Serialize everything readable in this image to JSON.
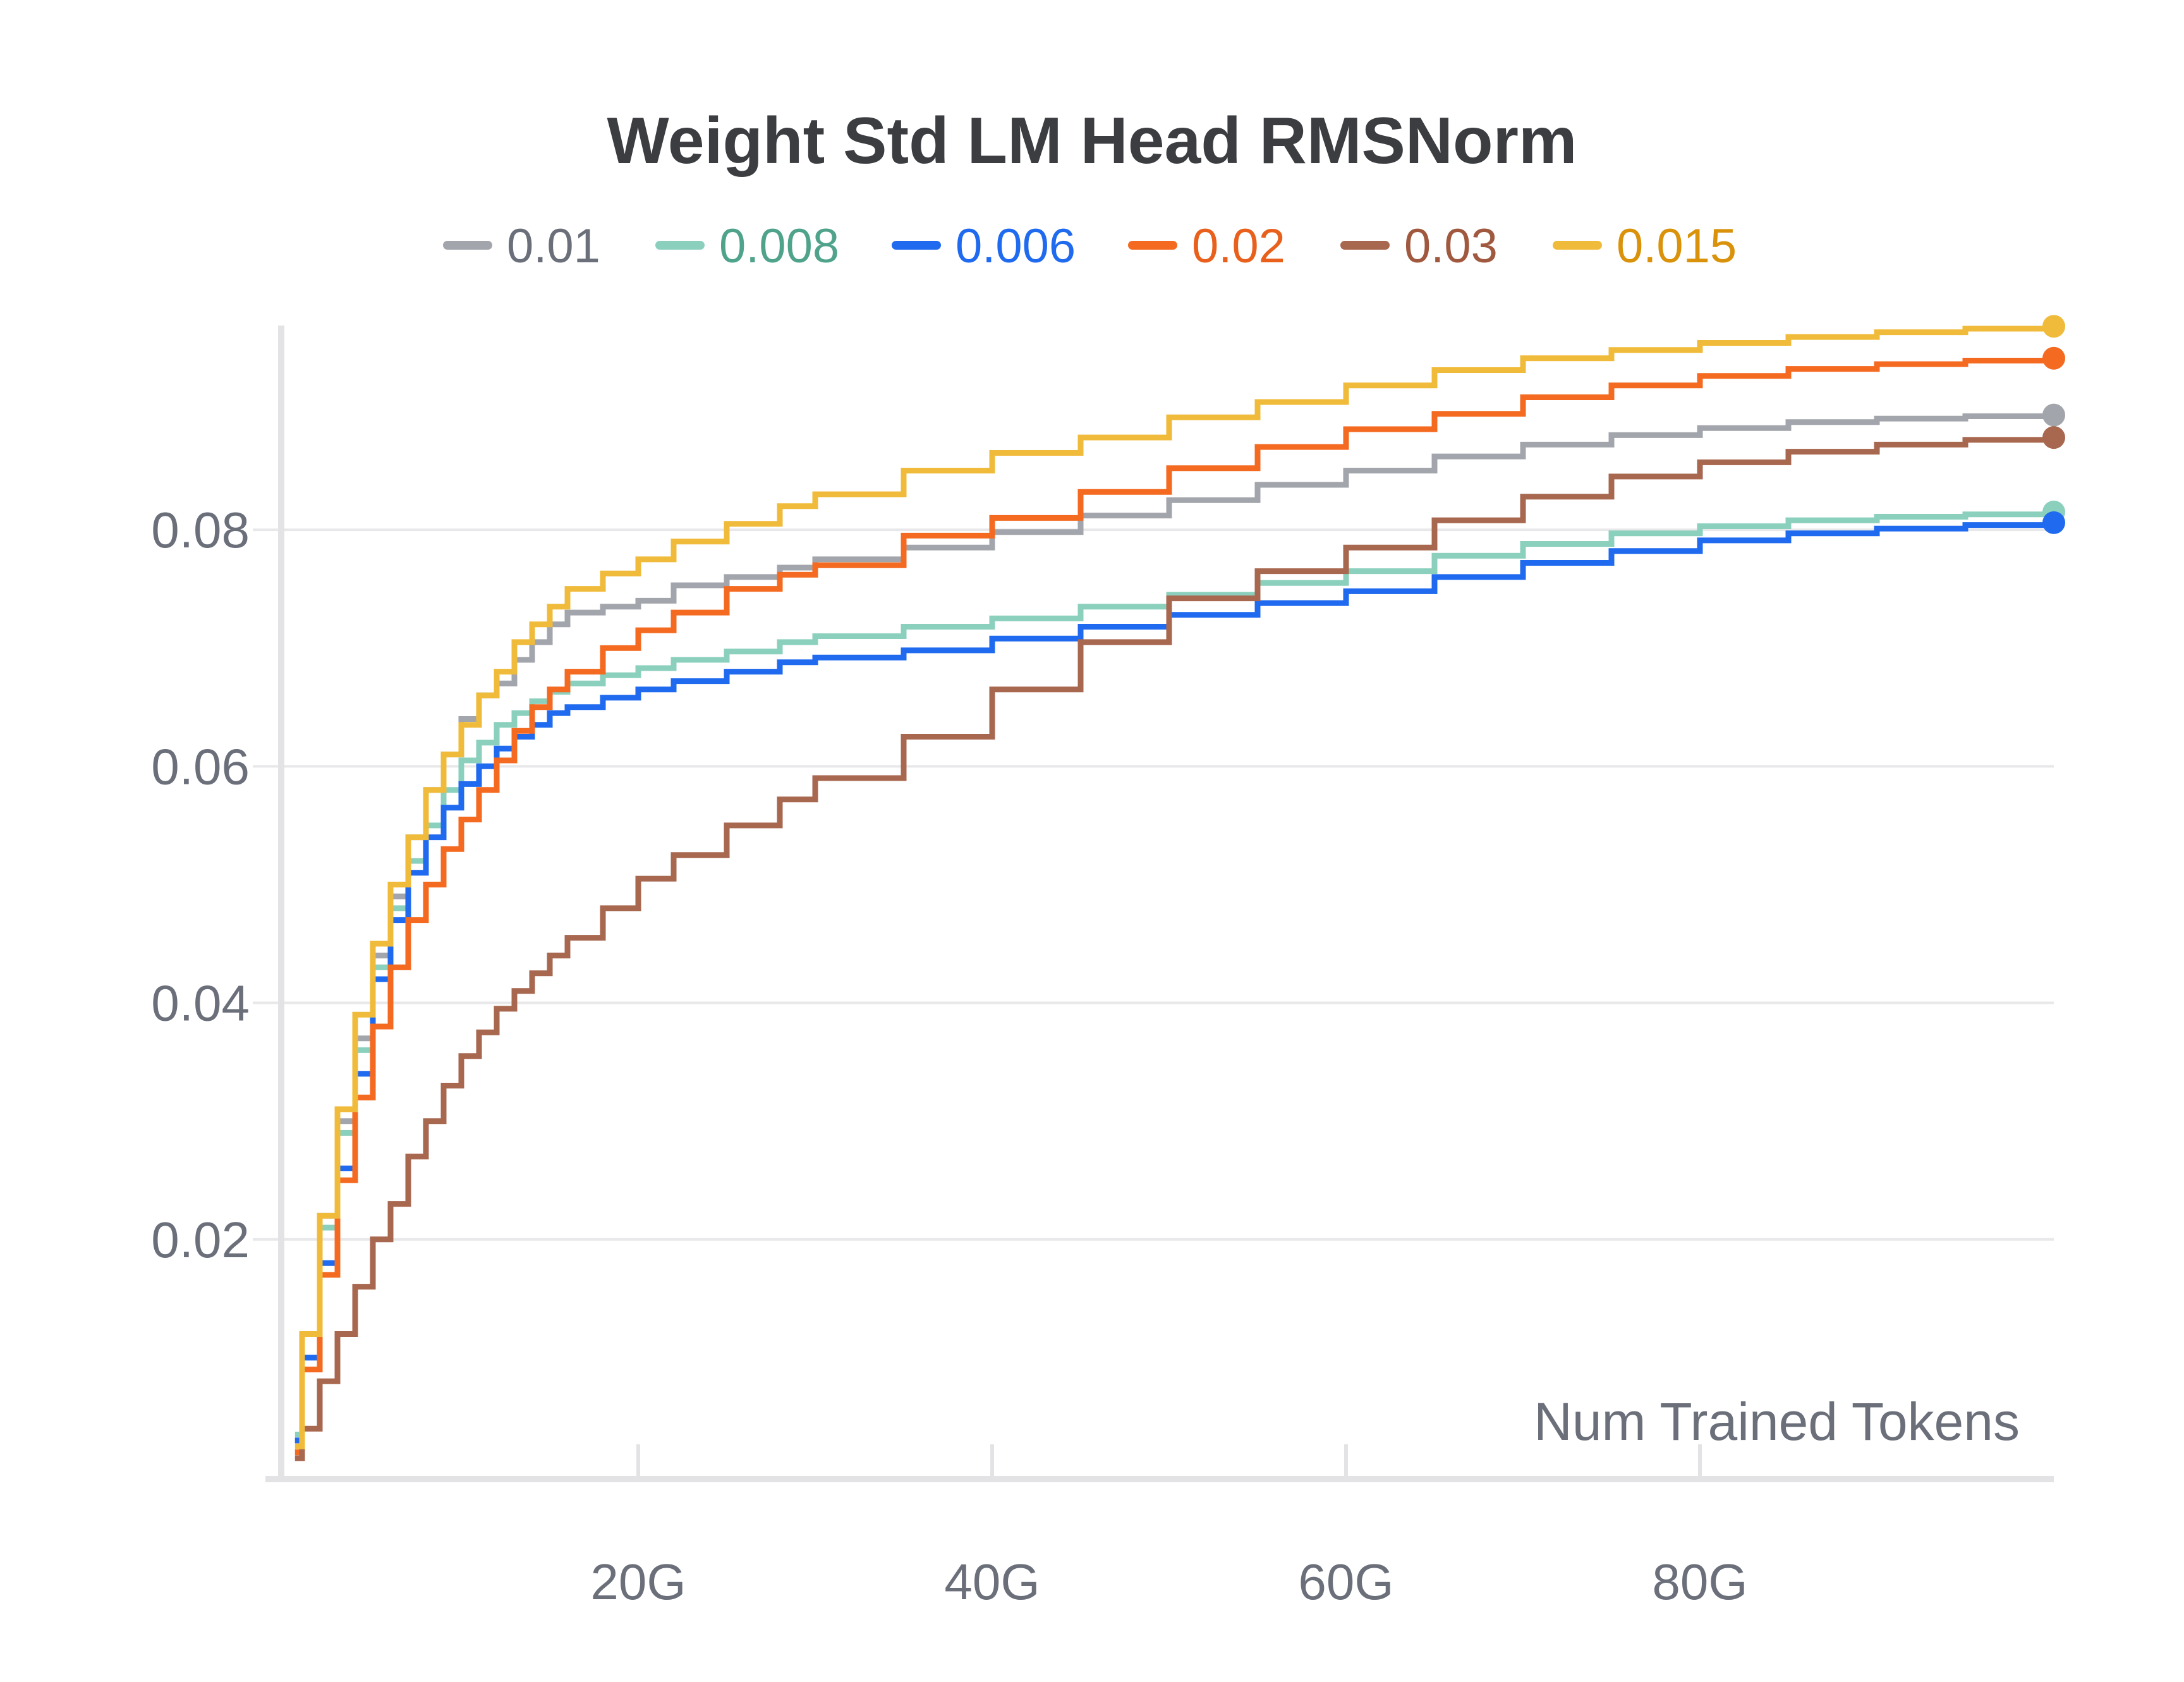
{
  "chart_data": {
    "type": "line",
    "title": "Weight Std LM Head RMSNorm",
    "xlabel": "Num Trained Tokens",
    "ylabel": "",
    "x_unit": "tokens (G = 1e9)",
    "xlim": [
      0,
      100
    ],
    "ylim": [
      0,
      0.097
    ],
    "x_ticks": [
      20,
      40,
      60,
      80
    ],
    "x_tick_labels": [
      "20G",
      "40G",
      "60G",
      "80G"
    ],
    "y_ticks": [
      0.02,
      0.04,
      0.06,
      0.08
    ],
    "y_tick_labels": [
      "0.02",
      "0.04",
      "0.06",
      "0.08"
    ],
    "grid": "horizontal",
    "legend_position": "top",
    "line_style": "step",
    "x": [
      0.6,
      1,
      2,
      3,
      4,
      5,
      6,
      7,
      8,
      9,
      10,
      11,
      12,
      13,
      14,
      15,
      16,
      18,
      20,
      22,
      25,
      28,
      30,
      35,
      40,
      45,
      50,
      55,
      60,
      65,
      70,
      75,
      80,
      85,
      90,
      95,
      100
    ],
    "series": [
      {
        "name": "0.01",
        "color": "#a2a5ab",
        "label_color": "#6b6f7a",
        "values": [
          0.003,
          0.012,
          0.022,
          0.03,
          0.037,
          0.044,
          0.049,
          0.054,
          0.058,
          0.061,
          0.064,
          0.066,
          0.067,
          0.069,
          0.0705,
          0.072,
          0.073,
          0.0735,
          0.074,
          0.0753,
          0.076,
          0.0768,
          0.0775,
          0.0785,
          0.0798,
          0.0812,
          0.0825,
          0.0838,
          0.085,
          0.0862,
          0.0872,
          0.088,
          0.0886,
          0.0891,
          0.0894,
          0.0896,
          0.0897
        ]
      },
      {
        "name": "0.008",
        "color": "#8bd0bd",
        "label_color": "#4fa38b",
        "values": [
          0.0035,
          0.012,
          0.021,
          0.029,
          0.036,
          0.043,
          0.048,
          0.052,
          0.055,
          0.058,
          0.0605,
          0.062,
          0.0635,
          0.0645,
          0.0655,
          0.0663,
          0.067,
          0.0677,
          0.0683,
          0.069,
          0.0697,
          0.0705,
          0.071,
          0.0718,
          0.0725,
          0.0735,
          0.0745,
          0.0755,
          0.0765,
          0.0778,
          0.0788,
          0.0797,
          0.0803,
          0.0808,
          0.0811,
          0.0813,
          0.0815
        ]
      },
      {
        "name": "0.006",
        "color": "#1f6aee",
        "label_color": "#1f6aee",
        "values": [
          0.003,
          0.01,
          0.018,
          0.026,
          0.034,
          0.042,
          0.047,
          0.051,
          0.054,
          0.0565,
          0.0585,
          0.06,
          0.0615,
          0.0625,
          0.0635,
          0.0645,
          0.065,
          0.0658,
          0.0665,
          0.0672,
          0.068,
          0.0688,
          0.0692,
          0.0698,
          0.0708,
          0.0718,
          0.0728,
          0.0738,
          0.0748,
          0.076,
          0.0772,
          0.0782,
          0.0791,
          0.0797,
          0.0801,
          0.0804,
          0.0806
        ]
      },
      {
        "name": "0.02",
        "color": "#f46a21",
        "label_color": "#e8601c",
        "values": [
          0.002,
          0.009,
          0.017,
          0.025,
          0.032,
          0.038,
          0.043,
          0.047,
          0.05,
          0.053,
          0.0555,
          0.058,
          0.0605,
          0.063,
          0.065,
          0.0665,
          0.068,
          0.07,
          0.0715,
          0.073,
          0.075,
          0.0762,
          0.077,
          0.0795,
          0.081,
          0.0832,
          0.0852,
          0.087,
          0.0885,
          0.0898,
          0.0912,
          0.0922,
          0.093,
          0.0936,
          0.094,
          0.0943,
          0.0945
        ]
      },
      {
        "name": "0.03",
        "color": "#a8674f",
        "label_color": "#a0593f",
        "values": [
          0.0015,
          0.004,
          0.008,
          0.012,
          0.016,
          0.02,
          0.023,
          0.027,
          0.03,
          0.033,
          0.0355,
          0.0375,
          0.0395,
          0.041,
          0.0425,
          0.044,
          0.0455,
          0.048,
          0.0505,
          0.0525,
          0.055,
          0.0572,
          0.059,
          0.0625,
          0.0665,
          0.0705,
          0.0742,
          0.0765,
          0.0785,
          0.0808,
          0.0828,
          0.0845,
          0.0857,
          0.0866,
          0.0872,
          0.0876,
          0.0878
        ]
      },
      {
        "name": "0.015",
        "color": "#f0bb3a",
        "label_color": "#d9920a",
        "values": [
          0.0025,
          0.012,
          0.022,
          0.031,
          0.039,
          0.045,
          0.05,
          0.054,
          0.058,
          0.061,
          0.0635,
          0.066,
          0.068,
          0.0705,
          0.072,
          0.0735,
          0.075,
          0.0763,
          0.0775,
          0.079,
          0.0805,
          0.082,
          0.083,
          0.085,
          0.0865,
          0.0878,
          0.0895,
          0.0908,
          0.0922,
          0.0935,
          0.0945,
          0.0952,
          0.0958,
          0.0963,
          0.0967,
          0.097,
          0.0972
        ]
      }
    ]
  }
}
